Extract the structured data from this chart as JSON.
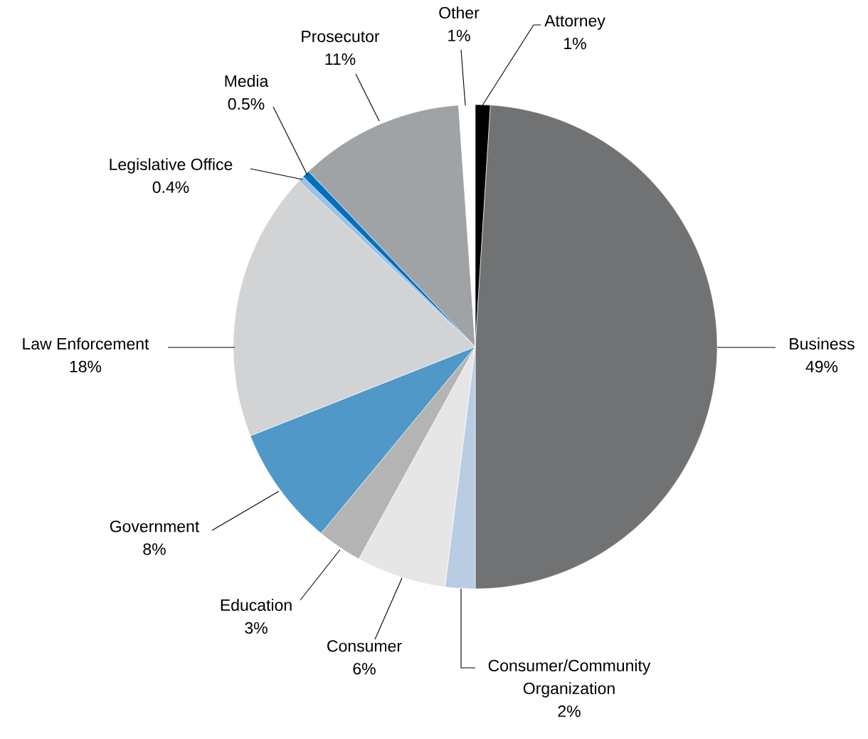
{
  "chart_data": {
    "type": "pie",
    "categories": [
      "Attorney",
      "Business",
      "Consumer/Community Organization",
      "Consumer",
      "Education",
      "Government",
      "Law Enforcement",
      "Legislative Office",
      "Media",
      "Prosecutor",
      "Other"
    ],
    "values": [
      1,
      49,
      2,
      6,
      3,
      8,
      18,
      0.4,
      0.5,
      11,
      1
    ],
    "value_labels": [
      "1%",
      "49%",
      "2%",
      "6%",
      "3%",
      "8%",
      "18%",
      "0.4%",
      "0.5%",
      "11%",
      "1%"
    ],
    "colors": [
      "#000000",
      "#707274",
      "#b8cce4",
      "#e6e6e6",
      "#b4b4b4",
      "#4f98c8",
      "#d2d3d5",
      "#9cc3e4",
      "#0070c0",
      "#a0a3a6",
      "#ffffff"
    ]
  }
}
